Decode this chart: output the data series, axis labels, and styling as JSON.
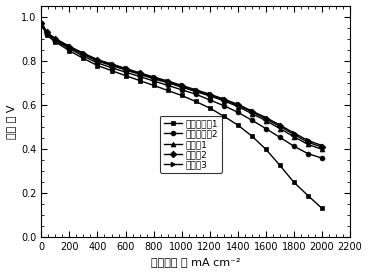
{
  "title": "",
  "xlabel": "电流密度 ／ mA cm⁻²",
  "ylabel": "电压 ／ V",
  "xlim": [
    0,
    2200
  ],
  "ylim": [
    0.0,
    1.05
  ],
  "xticks": [
    0,
    200,
    400,
    600,
    800,
    1000,
    1200,
    1400,
    1600,
    1800,
    2000,
    2200
  ],
  "yticks": [
    0.0,
    0.2,
    0.4,
    0.6,
    0.8,
    1.0
  ],
  "series": [
    {
      "label": "对比实施例1",
      "marker": "s",
      "x": [
        0,
        40,
        100,
        200,
        300,
        400,
        500,
        600,
        700,
        800,
        900,
        1000,
        1100,
        1200,
        1300,
        1400,
        1500,
        1600,
        1700,
        1800,
        1900,
        2000
      ],
      "y": [
        0.965,
        0.915,
        0.885,
        0.845,
        0.81,
        0.778,
        0.755,
        0.732,
        0.71,
        0.688,
        0.665,
        0.642,
        0.615,
        0.585,
        0.548,
        0.508,
        0.458,
        0.398,
        0.325,
        0.248,
        0.188,
        0.13
      ]
    },
    {
      "label": "对比实施例2",
      "marker": "o",
      "x": [
        0,
        40,
        100,
        200,
        300,
        400,
        500,
        600,
        700,
        800,
        900,
        1000,
        1100,
        1200,
        1300,
        1400,
        1500,
        1600,
        1700,
        1800,
        1900,
        2000
      ],
      "y": [
        0.965,
        0.92,
        0.89,
        0.855,
        0.82,
        0.79,
        0.768,
        0.748,
        0.728,
        0.708,
        0.688,
        0.668,
        0.648,
        0.622,
        0.596,
        0.566,
        0.53,
        0.492,
        0.452,
        0.412,
        0.378,
        0.358
      ]
    },
    {
      "label": "实施例1",
      "marker": "^",
      "x": [
        0,
        40,
        100,
        200,
        300,
        400,
        500,
        600,
        700,
        800,
        900,
        1000,
        1100,
        1200,
        1300,
        1400,
        1500,
        1600,
        1700,
        1800,
        1900,
        2000
      ],
      "y": [
        0.97,
        0.925,
        0.895,
        0.86,
        0.828,
        0.798,
        0.778,
        0.758,
        0.738,
        0.718,
        0.7,
        0.68,
        0.66,
        0.64,
        0.618,
        0.592,
        0.56,
        0.528,
        0.492,
        0.455,
        0.42,
        0.398
      ]
    },
    {
      "label": "实施例2",
      "marker": "D",
      "x": [
        0,
        40,
        100,
        200,
        300,
        400,
        500,
        600,
        700,
        800,
        900,
        1000,
        1100,
        1200,
        1300,
        1400,
        1500,
        1600,
        1700,
        1800,
        1900,
        2000
      ],
      "y": [
        0.972,
        0.928,
        0.898,
        0.863,
        0.832,
        0.802,
        0.782,
        0.762,
        0.742,
        0.722,
        0.704,
        0.684,
        0.664,
        0.644,
        0.622,
        0.598,
        0.568,
        0.536,
        0.502,
        0.465,
        0.43,
        0.408
      ]
    },
    {
      "label": "实施例3",
      "marker": ">",
      "x": [
        0,
        40,
        100,
        200,
        300,
        400,
        500,
        600,
        700,
        800,
        900,
        1000,
        1100,
        1200,
        1300,
        1400,
        1500,
        1600,
        1700,
        1800,
        1900,
        2000
      ],
      "y": [
        0.972,
        0.928,
        0.9,
        0.865,
        0.834,
        0.805,
        0.785,
        0.765,
        0.745,
        0.726,
        0.708,
        0.688,
        0.668,
        0.648,
        0.626,
        0.602,
        0.572,
        0.542,
        0.508,
        0.472,
        0.438,
        0.415
      ]
    }
  ],
  "line_color": "#000000",
  "markersize": 3.5,
  "linewidth": 1.0,
  "legend_fontsize": 6.5,
  "axis_fontsize": 8,
  "tick_fontsize": 7,
  "background_color": "#ffffff"
}
